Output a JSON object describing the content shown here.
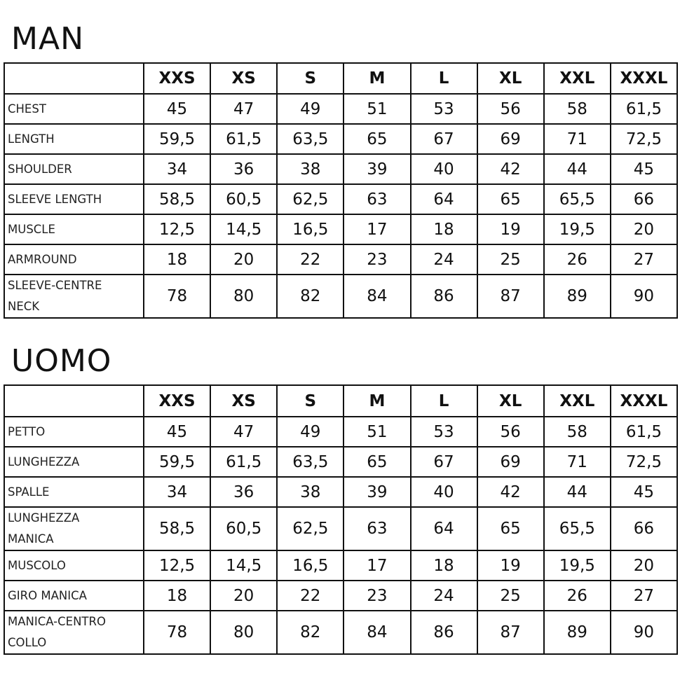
{
  "sizes": [
    "XXS",
    "XS",
    "S",
    "M",
    "L",
    "XL",
    "XXL",
    "XXXL"
  ],
  "tables": [
    {
      "title": "MAN",
      "rows": [
        {
          "label": "CHEST",
          "values": [
            "45",
            "47",
            "49",
            "51",
            "53",
            "56",
            "58",
            "61,5"
          ]
        },
        {
          "label": "LENGTH",
          "values": [
            "59,5",
            "61,5",
            "63,5",
            "65",
            "67",
            "69",
            "71",
            "72,5"
          ]
        },
        {
          "label": "SHOULDER",
          "values": [
            "34",
            "36",
            "38",
            "39",
            "40",
            "42",
            "44",
            "45"
          ]
        },
        {
          "label": "SLEEVE LENGTH",
          "values": [
            "58,5",
            "60,5",
            "62,5",
            "63",
            "64",
            "65",
            "65,5",
            "66"
          ]
        },
        {
          "label": "MUSCLE",
          "values": [
            "12,5",
            "14,5",
            "16,5",
            "17",
            "18",
            "19",
            "19,5",
            "20"
          ]
        },
        {
          "label": "ARMROUND",
          "values": [
            "18",
            "20",
            "22",
            "23",
            "24",
            "25",
            "26",
            "27"
          ]
        },
        {
          "label": "SLEEVE-CENTRE\nNECK",
          "values": [
            "78",
            "80",
            "82",
            "84",
            "86",
            "87",
            "89",
            "90"
          ]
        }
      ]
    },
    {
      "title": "UOMO",
      "rows": [
        {
          "label": "PETTO",
          "values": [
            "45",
            "47",
            "49",
            "51",
            "53",
            "56",
            "58",
            "61,5"
          ]
        },
        {
          "label": "LUNGHEZZA",
          "values": [
            "59,5",
            "61,5",
            "63,5",
            "65",
            "67",
            "69",
            "71",
            "72,5"
          ]
        },
        {
          "label": "SPALLE",
          "values": [
            "34",
            "36",
            "38",
            "39",
            "40",
            "42",
            "44",
            "45"
          ]
        },
        {
          "label": "LUNGHEZZA\nMANICA",
          "values": [
            "58,5",
            "60,5",
            "62,5",
            "63",
            "64",
            "65",
            "65,5",
            "66"
          ]
        },
        {
          "label": "MUSCOLO",
          "values": [
            "12,5",
            "14,5",
            "16,5",
            "17",
            "18",
            "19",
            "19,5",
            "20"
          ]
        },
        {
          "label": "GIRO MANICA",
          "values": [
            "18",
            "20",
            "22",
            "23",
            "24",
            "25",
            "26",
            "27"
          ]
        },
        {
          "label": "MANICA-CENTRO\nCOLLO",
          "values": [
            "78",
            "80",
            "82",
            "84",
            "86",
            "87",
            "89",
            "90"
          ]
        }
      ]
    }
  ]
}
